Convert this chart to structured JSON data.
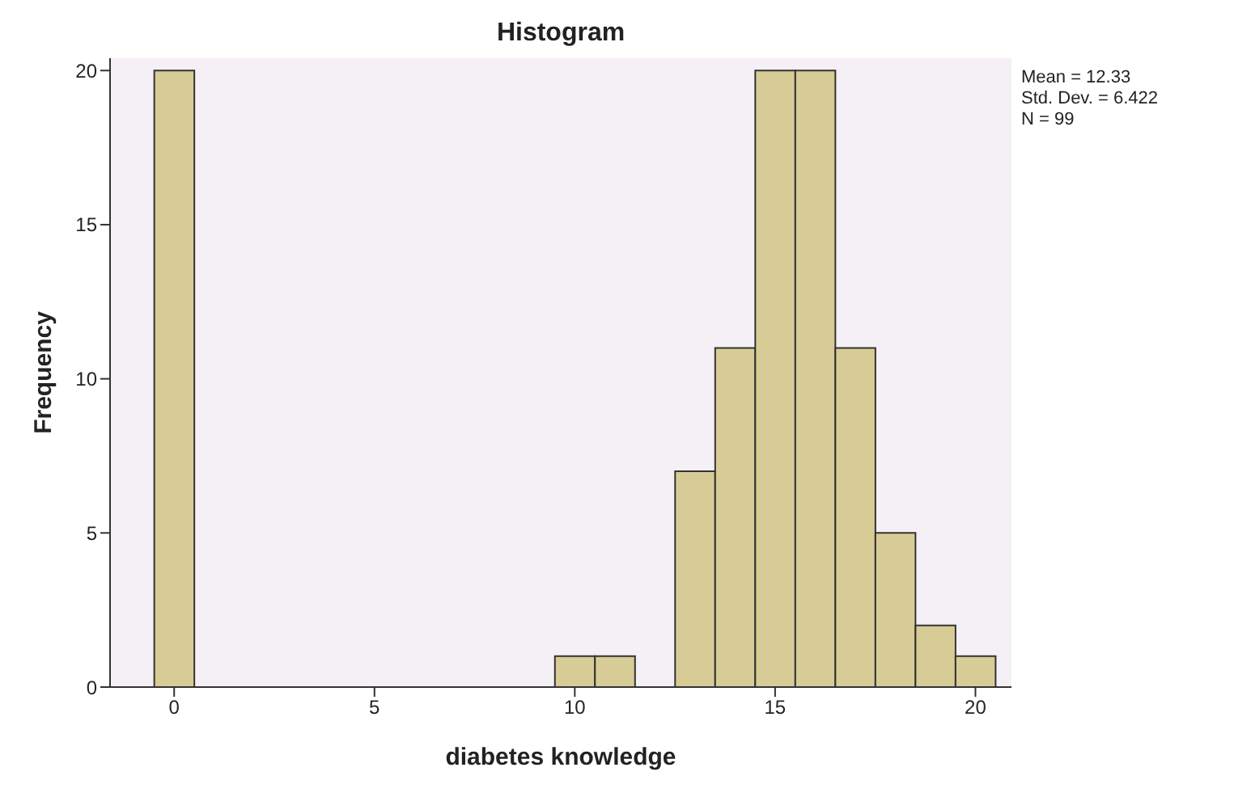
{
  "chart_data": {
    "type": "histogram",
    "title": "Histogram",
    "xlabel": "diabetes knowledge",
    "ylabel": "Frequency",
    "bins": [
      -0.5,
      0.5,
      1.5,
      2.5,
      3.5,
      4.5,
      5.5,
      6.5,
      7.5,
      8.5,
      9.5,
      10.5,
      11.5,
      12.5,
      13.5,
      14.5,
      15.5,
      16.5,
      17.5,
      18.5,
      19.5,
      20.5
    ],
    "values": [
      20,
      0,
      0,
      0,
      0,
      0,
      0,
      0,
      0,
      0,
      1,
      1,
      0,
      7,
      11,
      20,
      20,
      11,
      5,
      2,
      1
    ],
    "color": "#d8cc96",
    "xlim": [
      -1.6,
      20.9
    ],
    "xticks": [
      0,
      5,
      10,
      15,
      20
    ],
    "ylim": [
      0,
      20.4
    ],
    "yticks": [
      0,
      5,
      10,
      15,
      20
    ],
    "annotations": [
      "Mean = 12.33",
      "Std. Dev. = 6.422",
      "N = 99"
    ]
  }
}
